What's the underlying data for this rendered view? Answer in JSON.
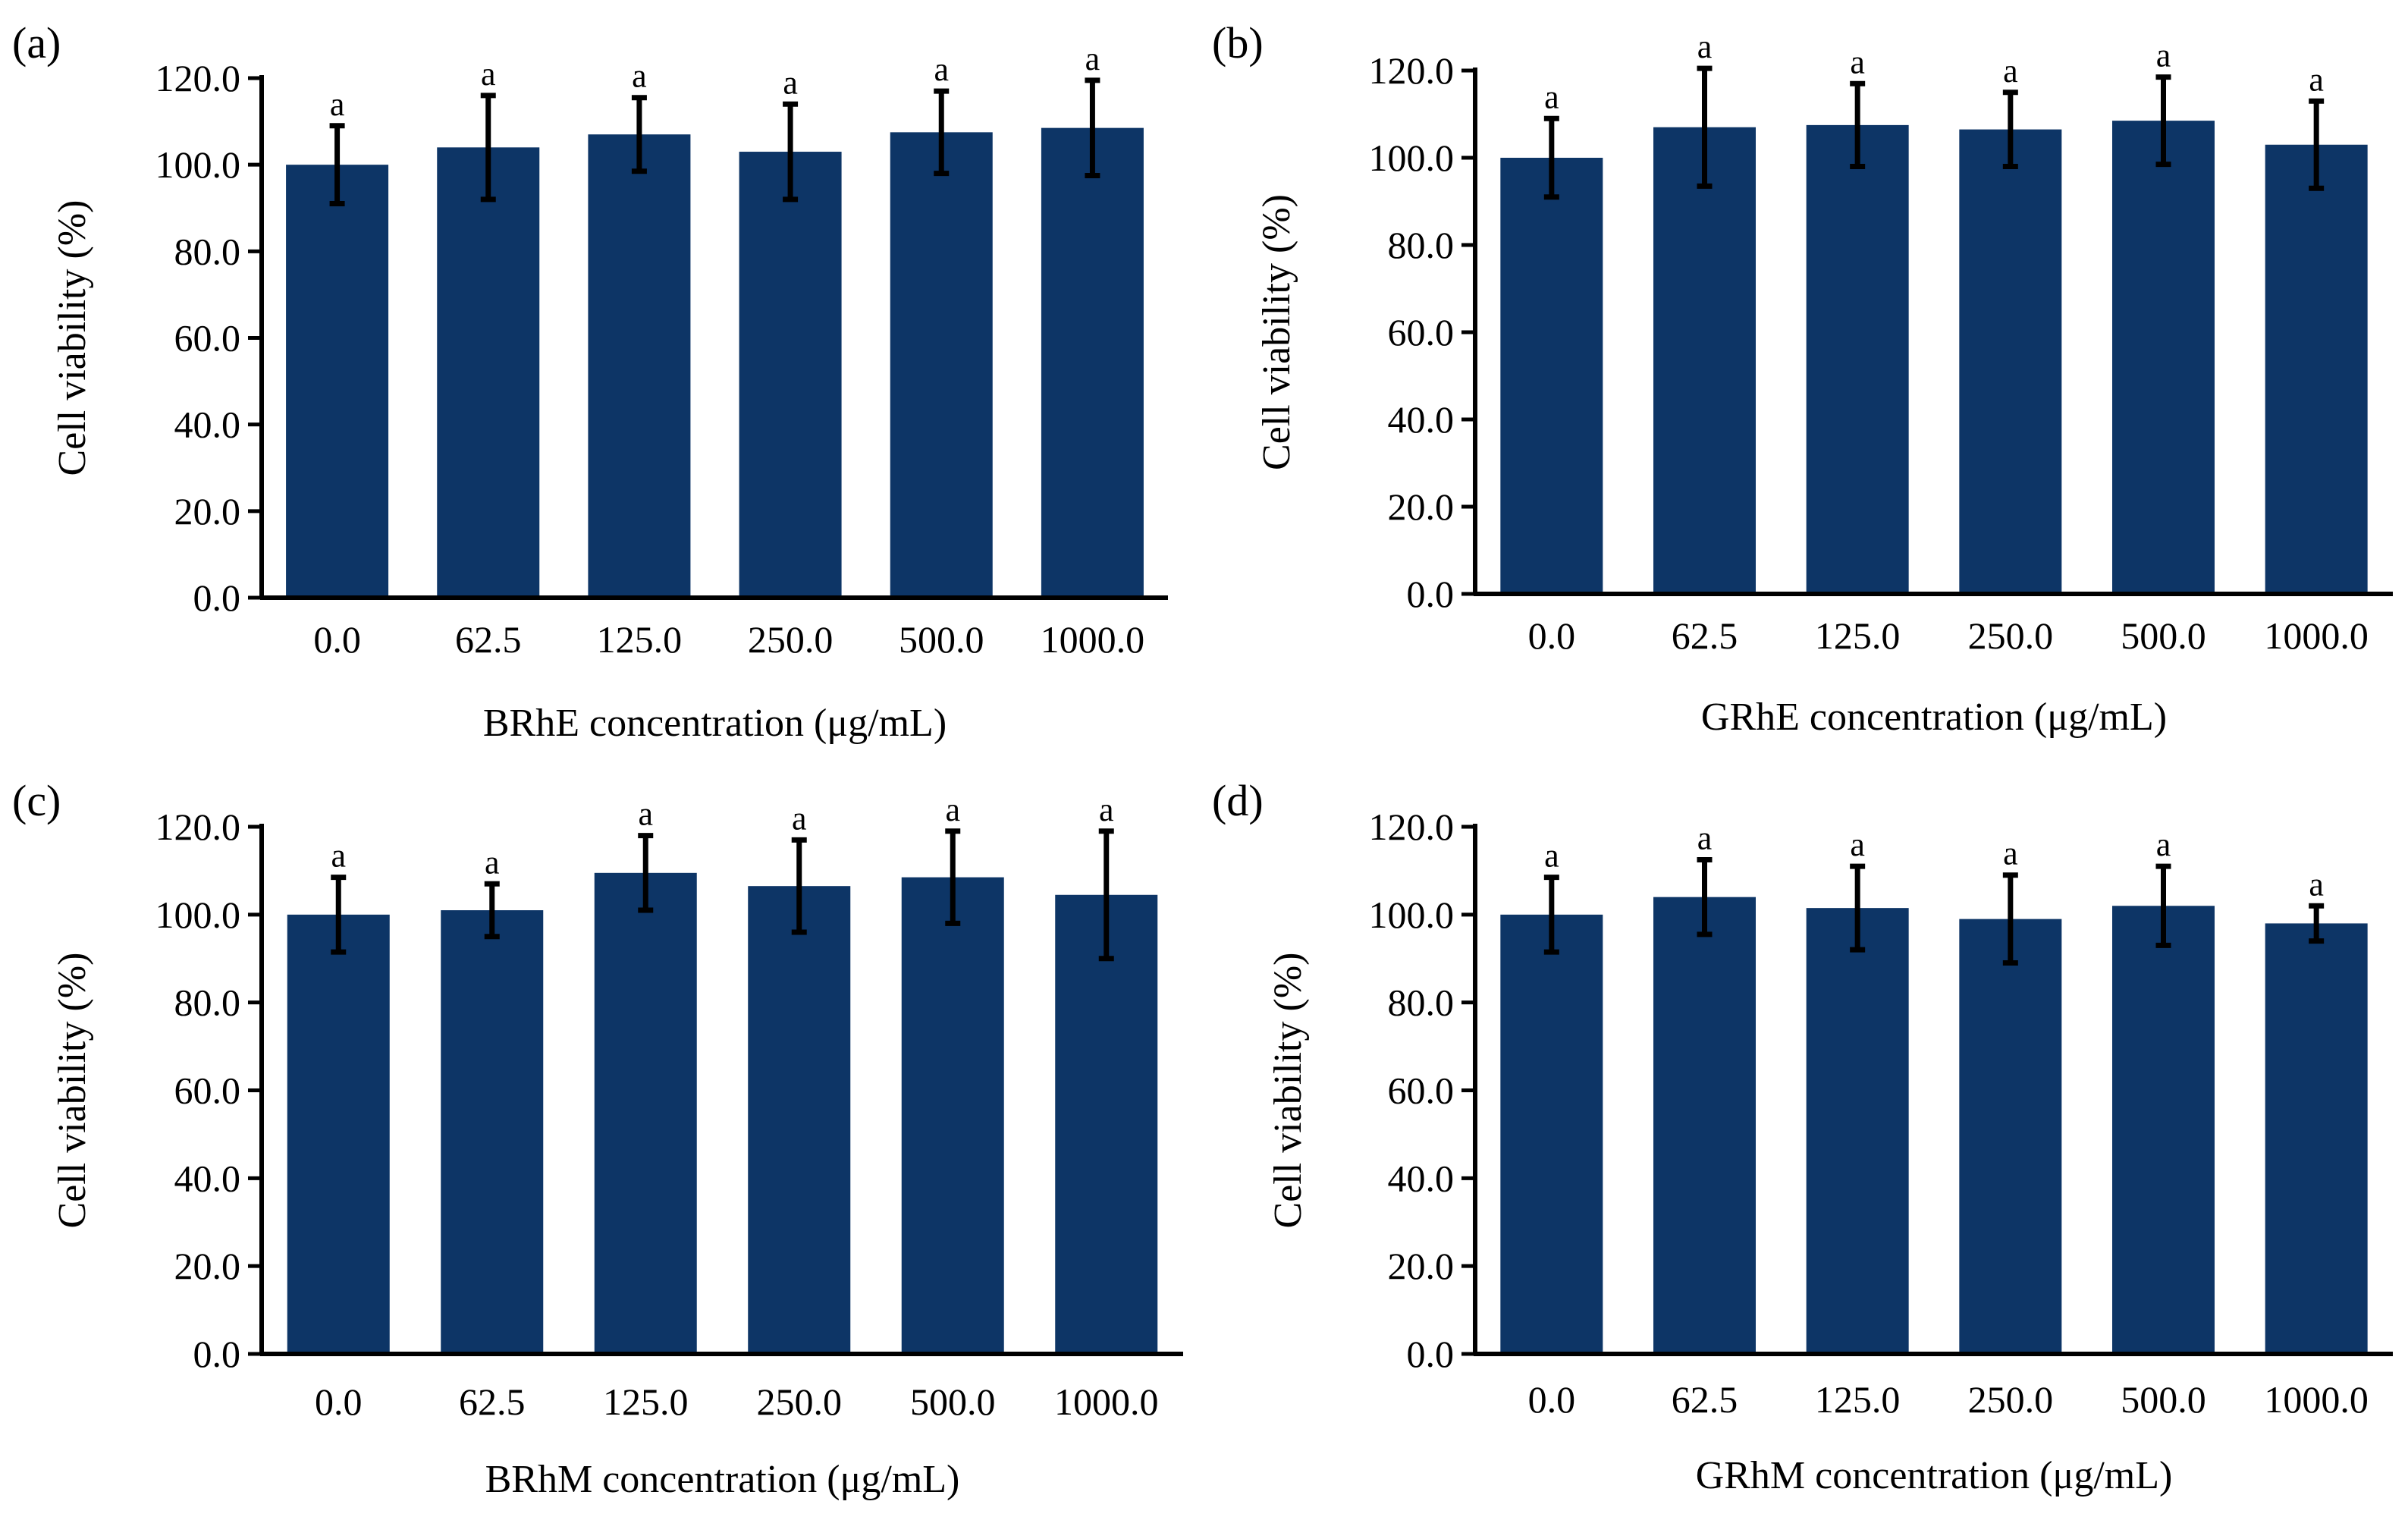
{
  "figure": {
    "bar_color": "#0d3566",
    "axis_color": "#000000"
  },
  "chart_data": [
    {
      "type": "bar",
      "panel": "(a)",
      "categories": [
        "0.0",
        "62.5",
        "125.0",
        "250.0",
        "500.0",
        "1000.0"
      ],
      "values": [
        100.0,
        104.0,
        107.0,
        103.0,
        107.5,
        108.5
      ],
      "errors": [
        9.0,
        12.0,
        8.5,
        11.0,
        9.5,
        11.0
      ],
      "significance": [
        "a",
        "a",
        "a",
        "a",
        "a",
        "a"
      ],
      "xlabel": "BRhE concentration (μg/mL)",
      "ylabel": "Cell viability (%)",
      "ylim": [
        0,
        120
      ],
      "yticks": [
        "0.0",
        "20.0",
        "40.0",
        "60.0",
        "80.0",
        "100.0",
        "120.0"
      ],
      "grid": false
    },
    {
      "type": "bar",
      "panel": "(b)",
      "categories": [
        "0.0",
        "62.5",
        "125.0",
        "250.0",
        "500.0",
        "1000.0"
      ],
      "values": [
        100.0,
        107.0,
        107.5,
        106.5,
        108.5,
        103.0
      ],
      "errors": [
        9.0,
        13.5,
        9.5,
        8.5,
        10.0,
        10.0
      ],
      "significance": [
        "a",
        "a",
        "a",
        "a",
        "a",
        "a"
      ],
      "xlabel": "GRhE concentration (μg/mL)",
      "ylabel": "Cell viability (%)",
      "ylim": [
        0,
        120
      ],
      "yticks": [
        "0.0",
        "20.0",
        "40.0",
        "60.0",
        "80.0",
        "100.0",
        "120.0"
      ],
      "grid": false
    },
    {
      "type": "bar",
      "panel": "(c)",
      "categories": [
        "0.0",
        "62.5",
        "125.0",
        "250.0",
        "500.0",
        "1000.0"
      ],
      "values": [
        100.0,
        101.0,
        109.5,
        106.5,
        108.5,
        104.5
      ],
      "errors": [
        8.5,
        6.0,
        8.5,
        10.5,
        10.5,
        14.5
      ],
      "significance": [
        "a",
        "a",
        "a",
        "a",
        "a",
        "a"
      ],
      "xlabel": "BRhM concentration (μg/mL)",
      "ylabel": "Cell viability (%)",
      "ylim": [
        0,
        120
      ],
      "yticks": [
        "0.0",
        "20.0",
        "40.0",
        "60.0",
        "80.0",
        "100.0",
        "120.0"
      ],
      "grid": false
    },
    {
      "type": "bar",
      "panel": "(d)",
      "categories": [
        "0.0",
        "62.5",
        "125.0",
        "250.0",
        "500.0",
        "1000.0"
      ],
      "values": [
        100.0,
        104.0,
        101.5,
        99.0,
        102.0,
        98.0
      ],
      "errors": [
        8.5,
        8.5,
        9.5,
        10.0,
        9.0,
        4.0
      ],
      "significance": [
        "a",
        "a",
        "a",
        "a",
        "a",
        "a"
      ],
      "xlabel": "GRhM concentration (μg/mL)",
      "ylabel": "Cell viability (%)",
      "ylim": [
        0,
        120
      ],
      "yticks": [
        "0.0",
        "20.0",
        "40.0",
        "60.0",
        "80.0",
        "100.0",
        "120.0"
      ],
      "grid": false
    }
  ]
}
